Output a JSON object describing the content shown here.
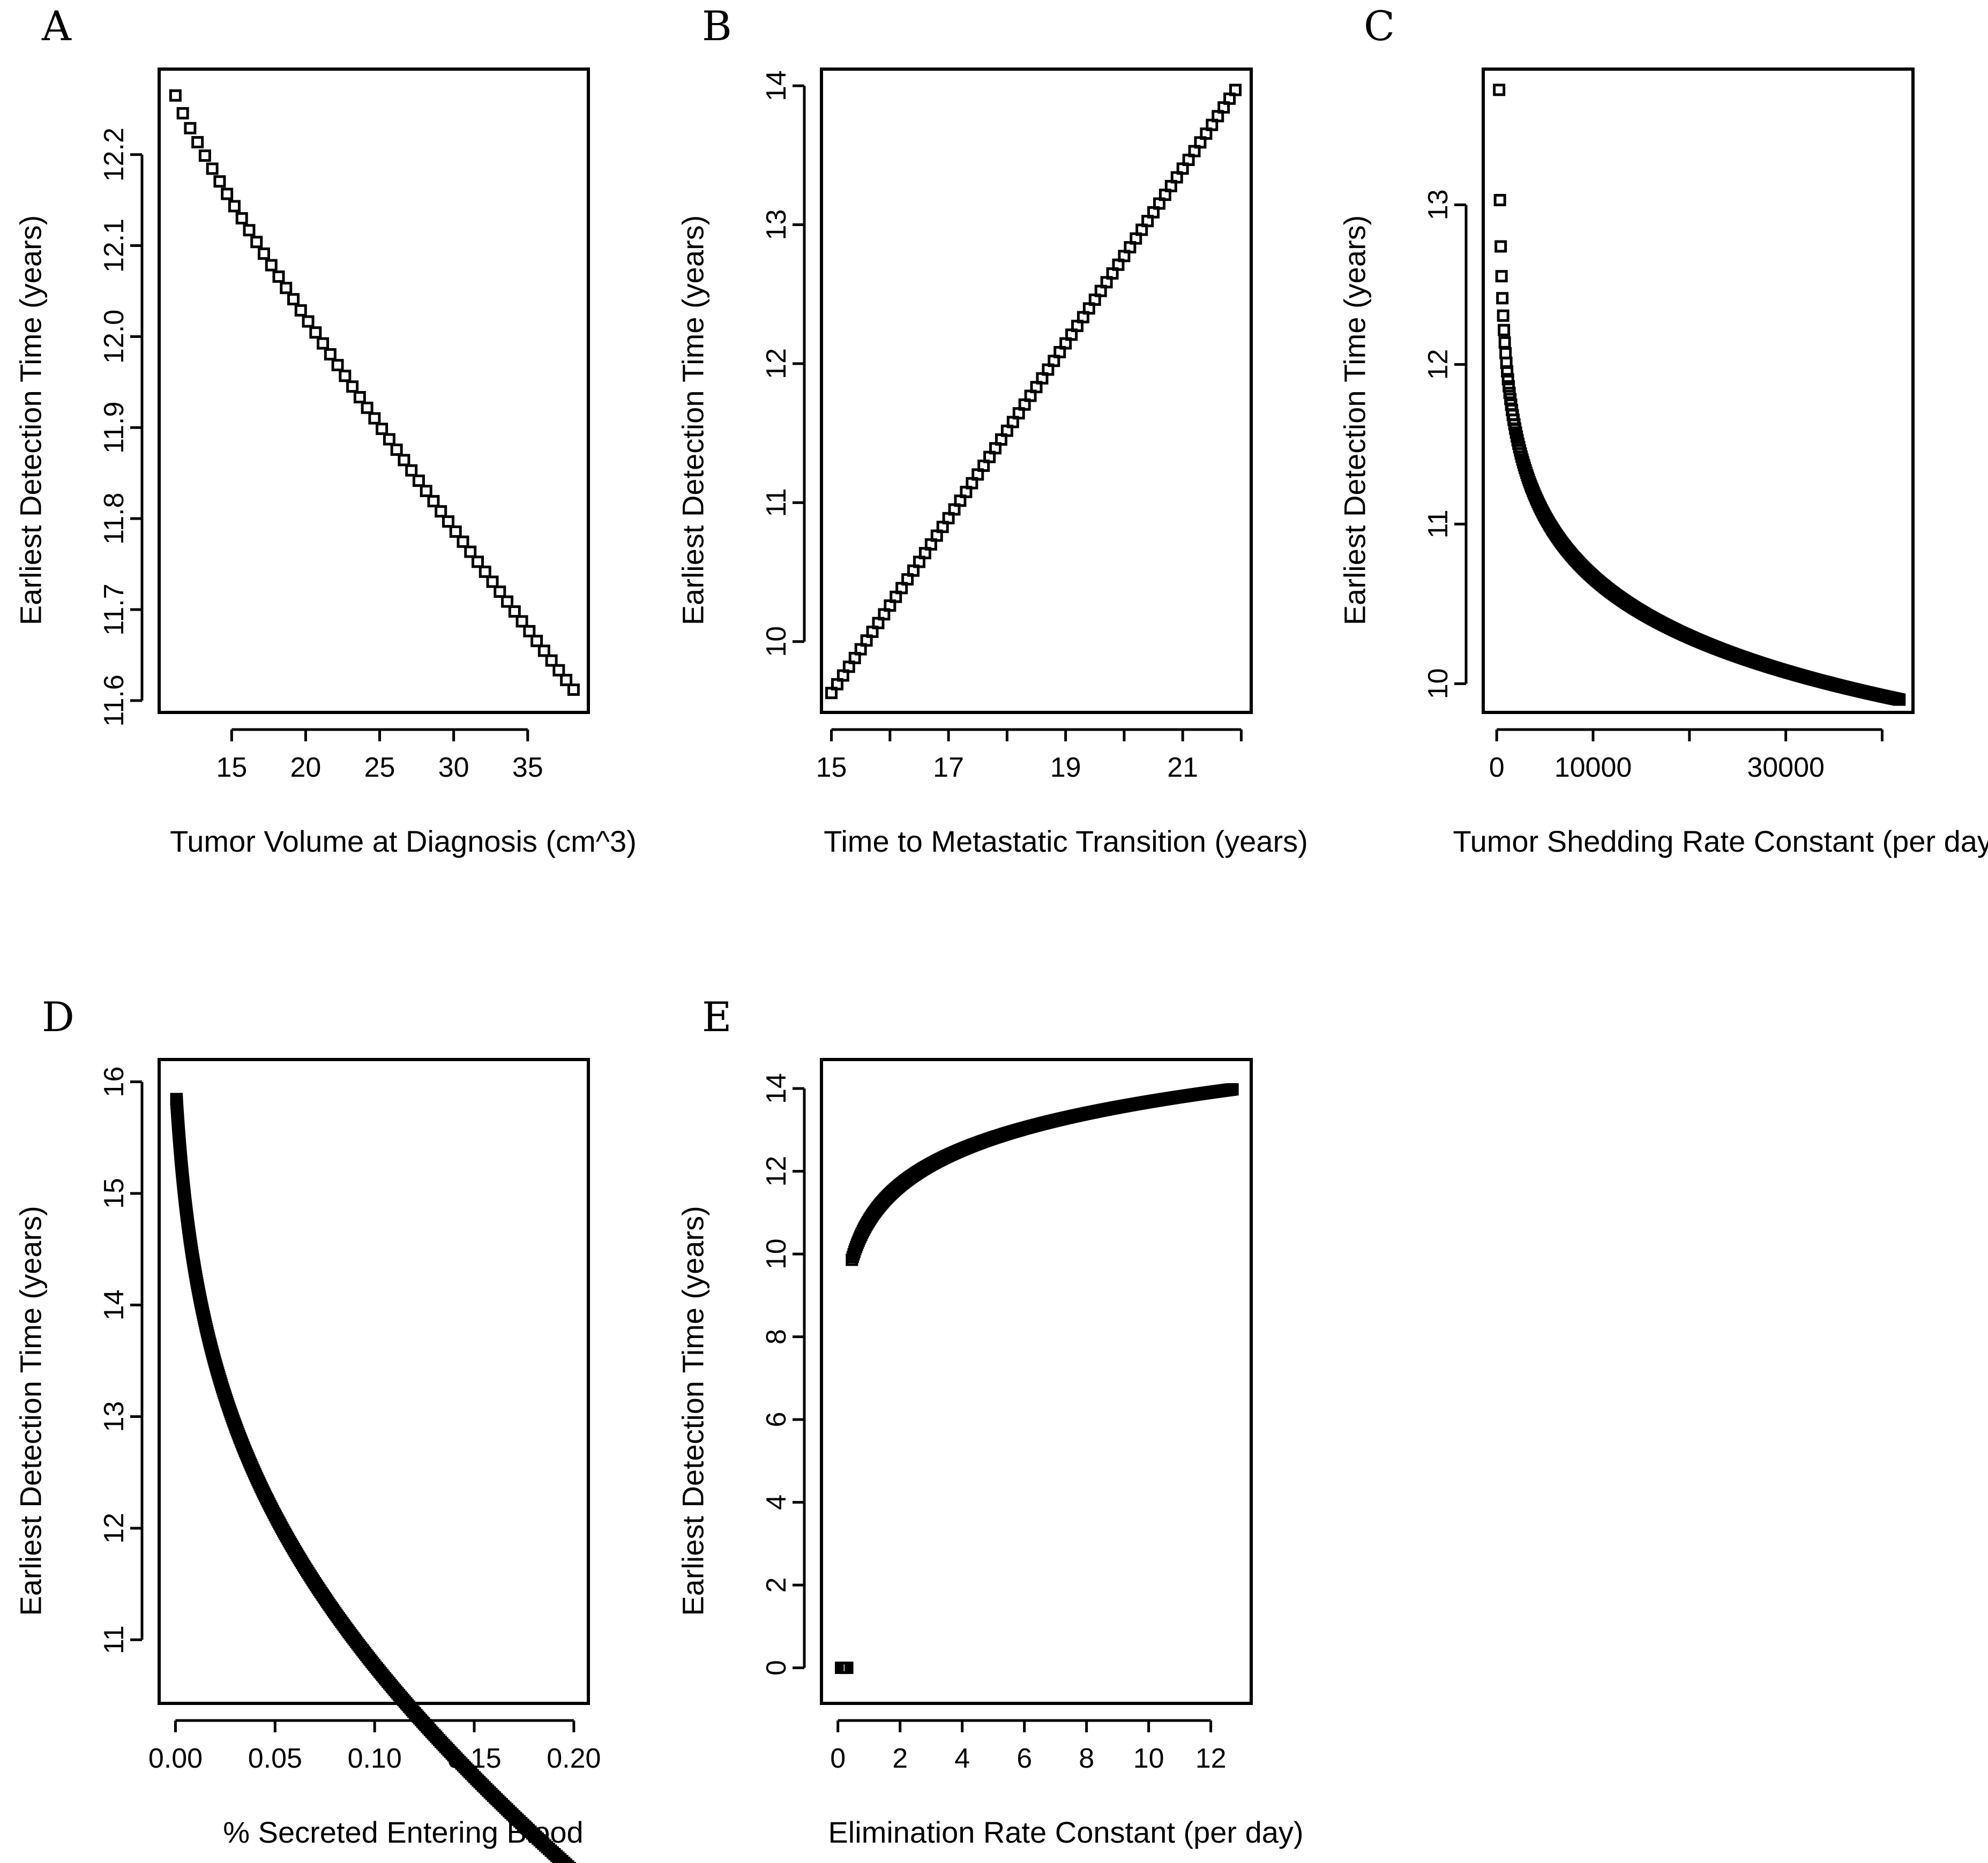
{
  "figure": {
    "colors": {
      "ink": "#000000",
      "background": "#ffffff"
    }
  },
  "chart_data": [
    {
      "id": "A",
      "panel_label": "A",
      "type": "scatter",
      "marker": "open-square",
      "xlabel": "Tumor Volume at Diagnosis (cm^3)",
      "ylabel": "Earliest Detection Time (years)",
      "xlim": [
        10.1,
        39.1
      ],
      "ylim": [
        11.587,
        12.294
      ],
      "xticks": [
        15,
        20,
        25,
        30,
        35
      ],
      "xtick_labels": [
        "15",
        "20",
        "25",
        "30",
        "35"
      ],
      "yticks": [
        11.6,
        11.7,
        11.8,
        11.9,
        12.0,
        12.1,
        12.2
      ],
      "ytick_labels": [
        "11.6",
        "11.7",
        "11.8",
        "11.9",
        "12.0",
        "12.1",
        "12.2"
      ],
      "curve": {
        "kind": "power",
        "x_start": 11.2,
        "x_end": 38.1,
        "n": 55,
        "y_start": 12.265,
        "y_end": 11.612,
        "shape": 0.88,
        "outliers": []
      }
    },
    {
      "id": "B",
      "panel_label": "B",
      "type": "scatter",
      "marker": "open-square",
      "xlabel": "Time to Metastatic Transition (years)",
      "ylabel": "Earliest Detection Time (years)",
      "xlim": [
        14.83,
        22.17
      ],
      "ylim": [
        9.49,
        14.12
      ],
      "xticks": [
        15,
        16,
        17,
        18,
        19,
        20,
        21,
        22
      ],
      "xtick_labels": [
        "15",
        "",
        "17",
        "",
        "19",
        "",
        "21",
        ""
      ],
      "yticks": [
        10,
        11,
        12,
        13,
        14
      ],
      "ytick_labels": [
        "10",
        "11",
        "12",
        "13",
        "14"
      ],
      "curve": {
        "kind": "linear",
        "x_start": 15.0,
        "x_end": 21.9,
        "n": 70,
        "y_start": 9.63,
        "y_end": 13.97,
        "outliers": []
      }
    },
    {
      "id": "C",
      "panel_label": "C",
      "type": "scatter",
      "marker": "open-square",
      "xlabel": "Tumor Shedding Rate Constant (per day)",
      "ylabel": "Earliest Detection Time (years)",
      "xlim": [
        -1400,
        43200
      ],
      "ylim": [
        9.82,
        13.85
      ],
      "xticks": [
        0,
        10000,
        20000,
        30000,
        40000
      ],
      "xtick_labels": [
        "0",
        "10000",
        "",
        "30000",
        ""
      ],
      "yticks": [
        10,
        11,
        12,
        13
      ],
      "ytick_labels": [
        "10",
        "11",
        "12",
        "13"
      ],
      "curve": {
        "kind": "log",
        "x_start": 250,
        "x_end": 41800,
        "n": 500,
        "y_start": 13.72,
        "y_end": 9.9,
        "shape": 0.03,
        "outliers": []
      }
    },
    {
      "id": "D",
      "panel_label": "D",
      "type": "scatter",
      "marker": "open-square",
      "xlabel": "% Secreted Entering Blood",
      "ylabel": "Earliest Detection Time (years)",
      "xlim": [
        -0.0082,
        0.2073
      ],
      "ylim": [
        10.43,
        16.2
      ],
      "xticks": [
        0.0,
        0.05,
        0.1,
        0.15,
        0.2
      ],
      "xtick_labels": [
        "0.00",
        "0.05",
        "0.10",
        "0.15",
        "0.20"
      ],
      "yticks": [
        11,
        12,
        13,
        14,
        15,
        16
      ],
      "ytick_labels": [
        "11",
        "12",
        "13",
        "14",
        "15",
        "16"
      ],
      "curve": {
        "kind": "sigmoid",
        "x_start": 0.0005,
        "x_end": 0.2,
        "n": 450,
        "a": 0.2,
        "b": 10.2,
        "c": 8.6,
        "outliers": []
      }
    },
    {
      "id": "E",
      "panel_label": "E",
      "type": "scatter",
      "marker": "open-square",
      "xlabel": "Elimination Rate Constant (per day)",
      "ylabel": "Earliest Detection Time (years)",
      "xlim": [
        -0.53,
        13.3
      ],
      "ylim": [
        -0.86,
        14.7
      ],
      "xticks": [
        0,
        2,
        4,
        6,
        8,
        10,
        12
      ],
      "xtick_labels": [
        "0",
        "2",
        "4",
        "6",
        "8",
        "10",
        "12"
      ],
      "yticks": [
        0,
        2,
        4,
        6,
        8,
        10,
        12,
        14
      ],
      "ytick_labels": [
        "0",
        "2",
        "4",
        "6",
        "8",
        "10",
        "12",
        "14"
      ],
      "curve": {
        "kind": "log",
        "x_start": 0.45,
        "x_end": 12.7,
        "n": 450,
        "y_start": 9.86,
        "y_end": 13.98,
        "shape": 1.6,
        "outliers": [
          [
            0.1,
            0.0
          ],
          [
            0.15,
            0.0
          ],
          [
            0.2,
            0.0
          ],
          [
            0.25,
            0.0
          ],
          [
            0.3,
            0.0
          ]
        ]
      }
    }
  ]
}
